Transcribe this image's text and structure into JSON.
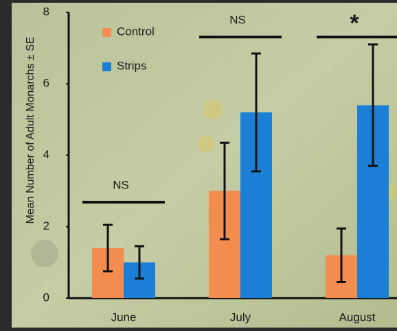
{
  "chart_data": {
    "type": "bar",
    "ylabel": "Mean Number of Adult Monarchs ± SE",
    "categories": [
      "June",
      "July",
      "August"
    ],
    "series": [
      {
        "name": "Control",
        "color": "#f28c4f",
        "values": [
          1.4,
          3.0,
          1.2
        ],
        "errors": [
          0.65,
          1.35,
          0.75
        ]
      },
      {
        "name": "Strips",
        "color": "#1c7fd6",
        "values": [
          1.0,
          5.2,
          5.4
        ],
        "errors": [
          0.45,
          1.65,
          1.7
        ]
      }
    ],
    "ylim": [
      0,
      8
    ],
    "yticks": [
      0,
      2,
      4,
      6,
      8
    ],
    "annotations": [
      "NS",
      "NS",
      "*"
    ]
  }
}
